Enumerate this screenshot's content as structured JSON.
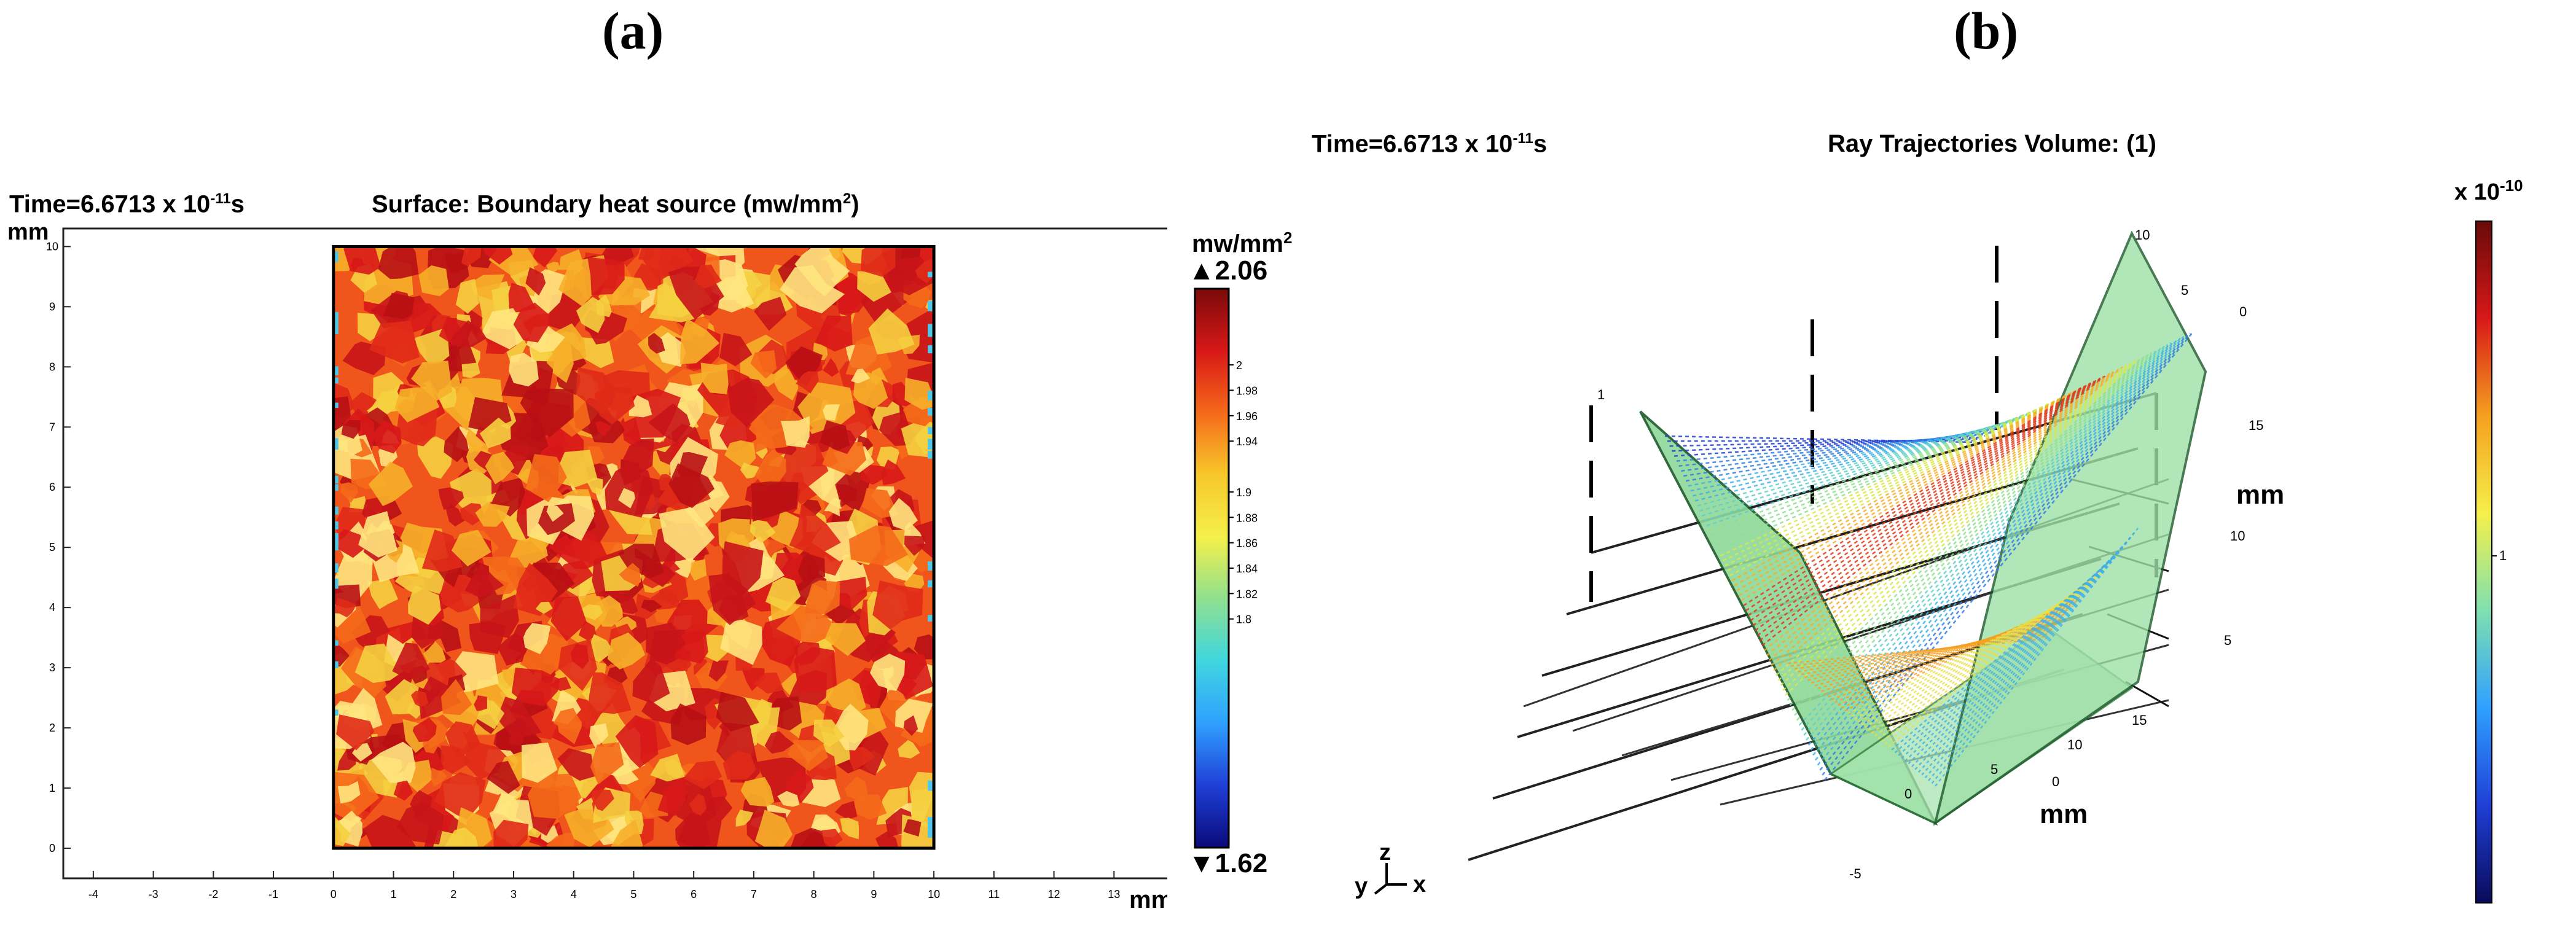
{
  "labels": {
    "a": "(a)",
    "b": "(b)"
  },
  "panel_a": {
    "time_prefix": "Time=6.6713 x 10",
    "time_exp": "-11",
    "time_suffix": "s",
    "title_main": "Surface: Boundary heat source (mw/mm",
    "title_sup": "2",
    "title_end": ")",
    "y_unit": "mm",
    "x_unit": "mm",
    "cb_unit_main": "mw/mm",
    "cb_unit_sup": "2",
    "cb_max": "▲2.06",
    "cb_min": "▼1.62"
  },
  "panel_b": {
    "time_prefix": "Time=6.6713 x 10",
    "time_exp": "-11",
    "time_suffix": "s",
    "title": "Ray Trajectories Volume: (1)",
    "cb_prefix": "x 10",
    "cb_exp": "-10",
    "axis_unit_a": "mm",
    "axis_unit_b": "mm",
    "triad": {
      "y": "y",
      "z": "z",
      "x": "x"
    },
    "ticks_right": [
      "15",
      "10",
      "5",
      "0"
    ],
    "ticks_bottom": [
      "15",
      "10",
      "5",
      "0",
      "-5"
    ],
    "ticks_top": [
      "10",
      "5",
      "0"
    ],
    "tick_left": "1"
  },
  "chart_data": [
    {
      "type": "heatmap",
      "title": "Surface: Boundary heat source (mw/mm²)",
      "xlabel": "mm",
      "ylabel": "mm",
      "xlim": [
        -4.5,
        14
      ],
      "ylim": [
        -0.5,
        10.3
      ],
      "x_ticks": [
        "-4",
        "-3",
        "-2",
        "-1",
        "0",
        "1",
        "2",
        "3",
        "4",
        "5",
        "6",
        "7",
        "8",
        "9",
        "10",
        "11",
        "12",
        "13"
      ],
      "y_ticks": [
        "0",
        "1",
        "2",
        "3",
        "4",
        "5",
        "6",
        "7",
        "8",
        "9",
        "10"
      ],
      "region": {
        "x": [
          0,
          10
        ],
        "y": [
          0,
          10
        ]
      },
      "colorbar": {
        "unit": "mw/mm²",
        "min": 1.62,
        "max": 2.06,
        "ticks": [
          "2",
          "1.98",
          "1.96",
          "1.94",
          "1.9",
          "1.88",
          "1.86",
          "1.84",
          "1.82",
          "1.8"
        ],
        "colors": [
          "#0a0a7a",
          "#1f3fd6",
          "#2fa0ff",
          "#3fd6e0",
          "#8fe08f",
          "#f5f04a",
          "#f7c82a",
          "#f56a1a",
          "#d81818",
          "#7a0a0a"
        ]
      }
    },
    {
      "type": "scatter",
      "title": "Ray Trajectories Volume: (1)",
      "colorbar": {
        "exponent": "x 10⁻¹⁰",
        "tick_labels": [
          "1"
        ],
        "colors": [
          "#0a0a5a",
          "#1f3fd6",
          "#2fa0ff",
          "#7fe0b0",
          "#f5f04a",
          "#f5a020",
          "#d81818",
          "#6a0a0a"
        ]
      }
    }
  ]
}
